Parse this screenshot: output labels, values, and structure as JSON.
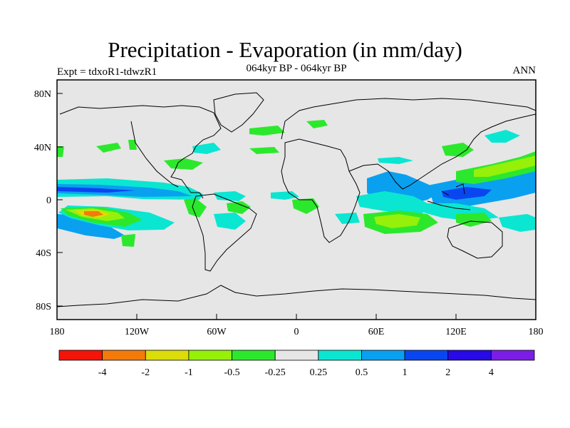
{
  "title": "Precipitation - Evaporation (in mm/day)",
  "subtitle": "064kyr BP - 064kyr BP",
  "left_label": "Expt = tdxoR1-tdwzR1",
  "right_label": "ANN",
  "lat_labels": [
    "80N",
    "40N",
    "0",
    "40S",
    "80S"
  ],
  "lon_labels": [
    "180",
    "120W",
    "60W",
    "0",
    "60E",
    "120E",
    "180"
  ],
  "colorbar": {
    "colors": [
      "#f4140a",
      "#f47a0a",
      "#dcdc0a",
      "#96f00a",
      "#2ce82c",
      "#e6e6e6",
      "#0ae6d2",
      "#0aa0f0",
      "#0a46f0",
      "#280ae6",
      "#7a1ee6"
    ],
    "labels": [
      "-4",
      "-2",
      "-1",
      "-0.5",
      "-0.25",
      "0.25",
      "0.5",
      "1",
      "2",
      "4"
    ]
  },
  "colors": {
    "background": "#e6e6e6",
    "coastline": "#000000"
  }
}
